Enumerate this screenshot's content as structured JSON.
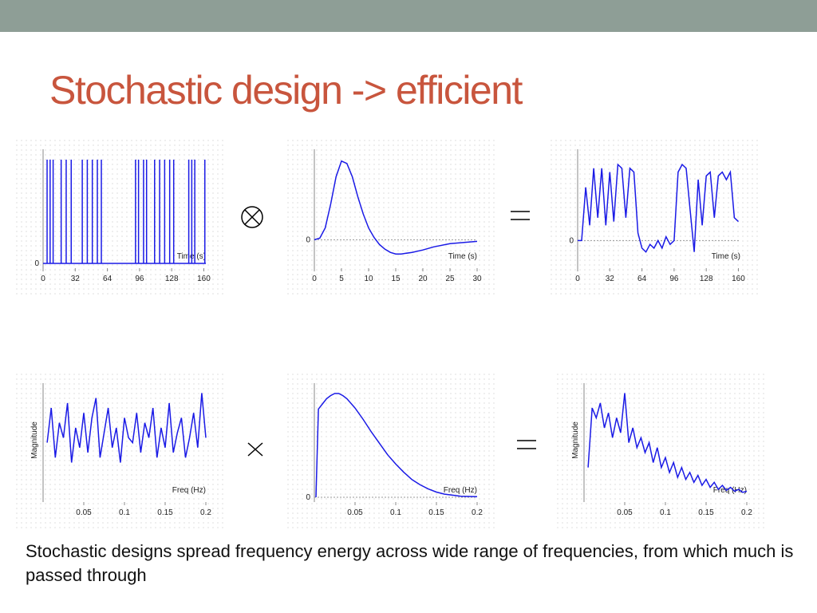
{
  "title": "Stochastic design -> efficient",
  "caption": "Stochastic designs spread frequency energy across wide range of frequencies, from which much is passed through",
  "chart_data": [
    {
      "type": "stem",
      "xlabel": "Time (s)",
      "xlim": [
        0,
        162
      ],
      "ylim": [
        0,
        1.1
      ],
      "xticks": [
        0,
        32,
        64,
        96,
        128,
        160
      ],
      "yticks": [
        0
      ],
      "x": [
        4,
        7,
        10,
        18,
        23,
        28,
        39,
        44,
        49,
        54,
        58,
        92,
        95,
        100,
        103,
        111,
        116,
        121,
        126,
        130,
        145,
        148,
        151,
        161
      ],
      "values": [
        1,
        1,
        1,
        1,
        1,
        1,
        1,
        1,
        1,
        1,
        1,
        1,
        1,
        1,
        1,
        1,
        1,
        1,
        1,
        1,
        1,
        1,
        1,
        1
      ],
      "color": "#1a1ae6"
    },
    {
      "type": "line",
      "xlabel": "Time (s)",
      "xlim": [
        0,
        30
      ],
      "ylim": [
        -0.3,
        1.15
      ],
      "xticks": [
        0,
        5,
        10,
        15,
        20,
        25,
        30
      ],
      "yticks": [
        0
      ],
      "x": [
        0,
        1,
        2,
        3,
        4,
        5,
        6,
        7,
        8,
        9,
        10,
        11,
        12,
        13,
        14,
        15,
        16,
        18,
        20,
        22,
        25,
        30
      ],
      "values": [
        0,
        0.02,
        0.15,
        0.45,
        0.8,
        1.0,
        0.97,
        0.8,
        0.55,
        0.33,
        0.15,
        0.03,
        -0.06,
        -0.12,
        -0.16,
        -0.18,
        -0.18,
        -0.16,
        -0.13,
        -0.09,
        -0.05,
        -0.02
      ],
      "color": "#1a1ae6"
    },
    {
      "type": "line",
      "xlabel": "Time (s)",
      "xlim": [
        0,
        162
      ],
      "ylim": [
        -0.3,
        1.2
      ],
      "xticks": [
        0,
        32,
        64,
        96,
        128,
        160
      ],
      "yticks": [
        0
      ],
      "x": [
        0,
        4,
        8,
        12,
        16,
        20,
        24,
        28,
        32,
        36,
        40,
        44,
        48,
        52,
        56,
        60,
        64,
        68,
        72,
        76,
        80,
        84,
        88,
        92,
        96,
        100,
        104,
        108,
        112,
        116,
        120,
        124,
        128,
        132,
        136,
        140,
        144,
        148,
        152,
        156,
        160
      ],
      "values": [
        0,
        0,
        0.7,
        0.2,
        0.95,
        0.3,
        0.95,
        0.2,
        0.9,
        0.25,
        1.0,
        0.95,
        0.3,
        0.95,
        0.9,
        0.1,
        -0.1,
        -0.15,
        -0.05,
        -0.1,
        0,
        -0.1,
        0.05,
        -0.05,
        0,
        0.9,
        1.0,
        0.95,
        0.4,
        -0.15,
        0.8,
        0.2,
        0.85,
        0.9,
        0.3,
        0.85,
        0.9,
        0.8,
        0.9,
        0.3,
        0.25
      ],
      "color": "#1a1ae6"
    },
    {
      "type": "line",
      "xlabel": "Freq (Hz)",
      "ylabel": "Magnitude",
      "xlim": [
        0,
        0.2
      ],
      "ylim": [
        0,
        1.15
      ],
      "xticks": [
        0.05,
        0.1,
        0.15,
        0.2
      ],
      "x": [
        0.005,
        0.01,
        0.015,
        0.02,
        0.025,
        0.03,
        0.035,
        0.04,
        0.045,
        0.05,
        0.055,
        0.06,
        0.065,
        0.07,
        0.075,
        0.08,
        0.085,
        0.09,
        0.095,
        0.1,
        0.105,
        0.11,
        0.115,
        0.12,
        0.125,
        0.13,
        0.135,
        0.14,
        0.145,
        0.15,
        0.155,
        0.16,
        0.165,
        0.17,
        0.175,
        0.18,
        0.185,
        0.19,
        0.195,
        0.2
      ],
      "values": [
        0.55,
        0.9,
        0.4,
        0.75,
        0.6,
        0.95,
        0.35,
        0.7,
        0.5,
        0.85,
        0.45,
        0.8,
        1.0,
        0.4,
        0.65,
        0.9,
        0.5,
        0.7,
        0.35,
        0.8,
        0.6,
        0.55,
        0.85,
        0.45,
        0.75,
        0.6,
        0.9,
        0.4,
        0.7,
        0.5,
        0.95,
        0.45,
        0.65,
        0.8,
        0.4,
        0.6,
        0.85,
        0.5,
        1.05,
        0.6
      ],
      "color": "#1a1ae6"
    },
    {
      "type": "line",
      "xlabel": "Freq (Hz)",
      "xlim": [
        0,
        0.2
      ],
      "ylim": [
        0,
        1.1
      ],
      "xticks": [
        0.05,
        0.1,
        0.15,
        0.2
      ],
      "yticks": [
        0
      ],
      "x": [
        0.002,
        0.005,
        0.01,
        0.015,
        0.02,
        0.025,
        0.03,
        0.035,
        0.04,
        0.05,
        0.06,
        0.07,
        0.08,
        0.09,
        0.1,
        0.11,
        0.12,
        0.13,
        0.14,
        0.15,
        0.16,
        0.17,
        0.18,
        0.2
      ],
      "values": [
        0,
        0.85,
        0.9,
        0.95,
        0.98,
        1.0,
        1.0,
        0.98,
        0.95,
        0.86,
        0.75,
        0.63,
        0.52,
        0.41,
        0.32,
        0.24,
        0.17,
        0.12,
        0.08,
        0.05,
        0.03,
        0.02,
        0.01,
        0.005
      ],
      "color": "#1a1ae6"
    },
    {
      "type": "line",
      "xlabel": "Freq (Hz)",
      "ylabel": "Magnitude",
      "xlim": [
        0,
        0.2
      ],
      "ylim": [
        0,
        1.15
      ],
      "xticks": [
        0.05,
        0.1,
        0.15,
        0.2
      ],
      "x": [
        0.005,
        0.01,
        0.015,
        0.02,
        0.025,
        0.03,
        0.035,
        0.04,
        0.045,
        0.05,
        0.055,
        0.06,
        0.065,
        0.07,
        0.075,
        0.08,
        0.085,
        0.09,
        0.095,
        0.1,
        0.105,
        0.11,
        0.115,
        0.12,
        0.125,
        0.13,
        0.135,
        0.14,
        0.145,
        0.15,
        0.155,
        0.16,
        0.165,
        0.17,
        0.175,
        0.18,
        0.185,
        0.19,
        0.195,
        0.2
      ],
      "values": [
        0.3,
        0.9,
        0.8,
        0.95,
        0.7,
        0.85,
        0.6,
        0.8,
        0.65,
        1.05,
        0.55,
        0.7,
        0.5,
        0.6,
        0.45,
        0.55,
        0.35,
        0.5,
        0.3,
        0.4,
        0.25,
        0.35,
        0.2,
        0.3,
        0.18,
        0.25,
        0.15,
        0.22,
        0.12,
        0.18,
        0.1,
        0.15,
        0.08,
        0.12,
        0.07,
        0.1,
        0.06,
        0.08,
        0.05,
        0.06
      ],
      "color": "#1a1ae6"
    }
  ]
}
